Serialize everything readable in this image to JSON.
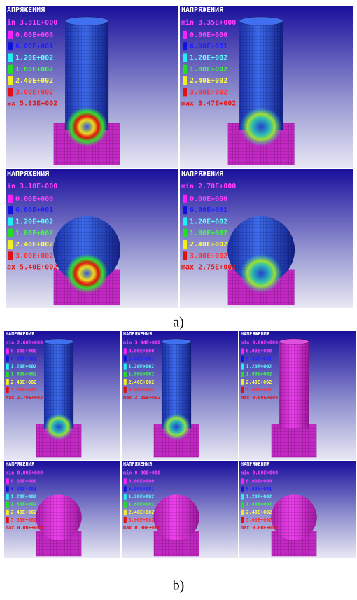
{
  "figure_a": {
    "caption": "a)",
    "panels": [
      {
        "title": "АПРЯЖЕНИЯ",
        "min": "in 3.31E+000",
        "legend": [
          "0.00E+000",
          "6.00E+001",
          "1.20E+002",
          "1.80E+002",
          "2.40E+002",
          "3.00E+002"
        ],
        "max": "ax 5.83E+002"
      },
      {
        "title": "НАПРЯЖЕНИЯ",
        "min": "min 3.35E+000",
        "legend": [
          "0.00E+000",
          "6.00E+001",
          "1.20E+002",
          "1.80E+002",
          "2.40E+002",
          "3.00E+002"
        ],
        "max": "max 3.47E+002"
      },
      {
        "title": "НАПРЯЖЕНИЯ",
        "min": "in 3.10E+000",
        "legend": [
          "0.00E+000",
          "6.00E+001",
          "1.20E+002",
          "1.80E+002",
          "2.40E+002",
          "3.00E+002"
        ],
        "max": "ax 5.40E+002"
      },
      {
        "title": "НАПРЯЖЕНИЯ",
        "min": "min 2.70E+000",
        "legend": [
          "0.00E+000",
          "6.00E+001",
          "1.20E+002",
          "1.80E+002",
          "2.40E+002",
          "3.00E+002"
        ],
        "max": "max 2.75E+002"
      }
    ]
  },
  "figure_b": {
    "caption": "b)",
    "panels": [
      {
        "title": "НАПРЯЖЕНИЯ",
        "min": "min 2.60E+000",
        "legend": [
          "0.00E+000",
          "6.00E+001",
          "1.20E+002",
          "1.80E+002",
          "2.40E+002",
          "3.00E+002"
        ],
        "max": "max 2.79E+002"
      },
      {
        "title": "НАПРЯЖЕНИЯ",
        "min": "min 3.44E+000",
        "legend": [
          "0.00E+000",
          "6.00E+001",
          "1.20E+002",
          "1.80E+002",
          "2.40E+002",
          "3.00E+002"
        ],
        "max": "max 2.25E+002"
      },
      {
        "title": "НАПРЯЖЕНИЯ",
        "min": "min 0.00E+000",
        "legend": [
          "0.00E+000",
          "6.00E+001",
          "1.20E+002",
          "1.80E+002",
          "2.40E+002",
          "3.00E+002"
        ],
        "max": "max 0.00E+000"
      },
      {
        "title": "НАПРЯЖЕНИЯ",
        "min": "min 0.00E+000",
        "legend": [
          "0.00E+000",
          "6.00E+001",
          "1.20E+002",
          "1.80E+002",
          "2.40E+002",
          "3.00E+002"
        ],
        "max": "max 0.00E+000"
      },
      {
        "title": "НАПРЯЖЕНИЯ",
        "min": "min 0.00E+000",
        "legend": [
          "0.00E+000",
          "6.00E+001",
          "1.20E+002",
          "1.80E+002",
          "2.40E+002",
          "3.00E+002"
        ],
        "max": "max 0.00E+000"
      },
      {
        "title": "НАПРЯЖЕНИЯ",
        "min": "min 0.00E+000",
        "legend": [
          "0.00E+000",
          "6.00E+001",
          "1.20E+002",
          "1.80E+002",
          "2.40E+002",
          "3.00E+002"
        ],
        "max": "max 0.00E+000"
      }
    ]
  }
}
